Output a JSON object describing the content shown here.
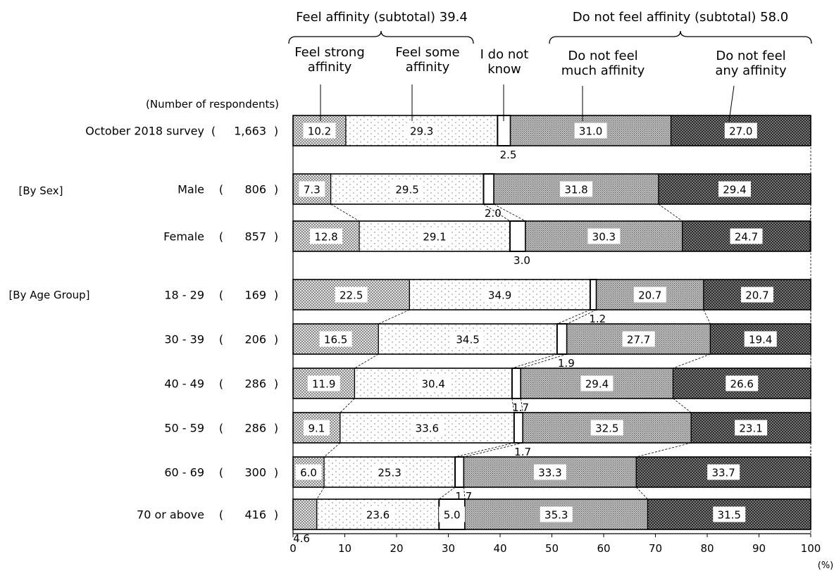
{
  "colors": {
    "strong": "#d0d0d0",
    "some": "#ffffff",
    "unknown": "#ffffff",
    "much": "#a6a6a6",
    "any": "#3a3a3a"
  },
  "chart_data": {
    "type": "bar",
    "orientation": "horizontal-stacked-100",
    "xlim": [
      0,
      100
    ],
    "x_ticks": [
      "0",
      "10",
      "20",
      "30",
      "40",
      "50",
      "60",
      "70",
      "80",
      "90",
      "100"
    ],
    "x_unit": "(%)",
    "respondents_header": "(Number of respondents)",
    "groups": [
      {
        "label": "[By Sex]",
        "rows": [
          1,
          2
        ]
      },
      {
        "label": "[By Age Group]",
        "rows": [
          3,
          4,
          5,
          6,
          7,
          8
        ]
      }
    ],
    "subtotals": [
      {
        "label": "Feel affinity (subtotal) 39.4",
        "series": [
          0,
          1
        ]
      },
      {
        "label": "Do not feel affinity (subtotal) 58.0",
        "series": [
          3,
          4
        ]
      }
    ],
    "series": [
      {
        "name": "Feel strong affinity",
        "name_lines": [
          "Feel strong",
          "affinity"
        ]
      },
      {
        "name": "Feel some affinity",
        "name_lines": [
          "Feel some",
          "affinity"
        ]
      },
      {
        "name": "I do not know",
        "name_lines": [
          "I do not",
          "know"
        ]
      },
      {
        "name": "Do not feel much affinity",
        "name_lines": [
          "Do not feel",
          "much affinity"
        ]
      },
      {
        "name": "Do not feel any affinity",
        "name_lines": [
          "Do not feel",
          "any affinity"
        ]
      }
    ],
    "rows": [
      {
        "label": "October 2018 survey",
        "n": "1,663",
        "values": [
          10.2,
          29.3,
          2.5,
          31.0,
          27.0
        ]
      },
      {
        "label": "Male",
        "n": "806",
        "values": [
          7.3,
          29.5,
          2.0,
          31.8,
          29.4
        ]
      },
      {
        "label": "Female",
        "n": "857",
        "values": [
          12.8,
          29.1,
          3.0,
          30.3,
          24.7
        ]
      },
      {
        "label": "18 - 29",
        "n": "169",
        "values": [
          22.5,
          34.9,
          1.2,
          20.7,
          20.7
        ]
      },
      {
        "label": "30 - 39",
        "n": "206",
        "values": [
          16.5,
          34.5,
          1.9,
          27.7,
          19.4
        ]
      },
      {
        "label": "40 - 49",
        "n": "286",
        "values": [
          11.9,
          30.4,
          1.7,
          29.4,
          26.6
        ]
      },
      {
        "label": "50 - 59",
        "n": "286",
        "values": [
          9.1,
          33.6,
          1.7,
          32.5,
          23.1
        ]
      },
      {
        "label": "60 - 69",
        "n": "300",
        "values": [
          6.0,
          25.3,
          1.7,
          33.3,
          33.7
        ]
      },
      {
        "label": "70 or above",
        "n": "416",
        "values": [
          4.6,
          23.6,
          5.0,
          35.3,
          31.5
        ]
      }
    ],
    "labels": [
      [
        "10.2",
        "29.3",
        "2.5",
        "31.0",
        "27.0"
      ],
      [
        "7.3",
        "29.5",
        "2.0",
        "31.8",
        "29.4"
      ],
      [
        "12.8",
        "29.1",
        "3.0",
        "30.3",
        "24.7"
      ],
      [
        "22.5",
        "34.9",
        "1.2",
        "20.7",
        "20.7"
      ],
      [
        "16.5",
        "34.5",
        "1.9",
        "27.7",
        "19.4"
      ],
      [
        "11.9",
        "30.4",
        "1.7",
        "29.4",
        "26.6"
      ],
      [
        "9.1",
        "33.6",
        "1.7",
        "32.5",
        "23.1"
      ],
      [
        "6.0",
        "25.3",
        "1.7",
        "33.3",
        "33.7"
      ],
      [
        "4.6",
        "23.6",
        "5.0",
        "35.3",
        "31.5"
      ]
    ]
  }
}
